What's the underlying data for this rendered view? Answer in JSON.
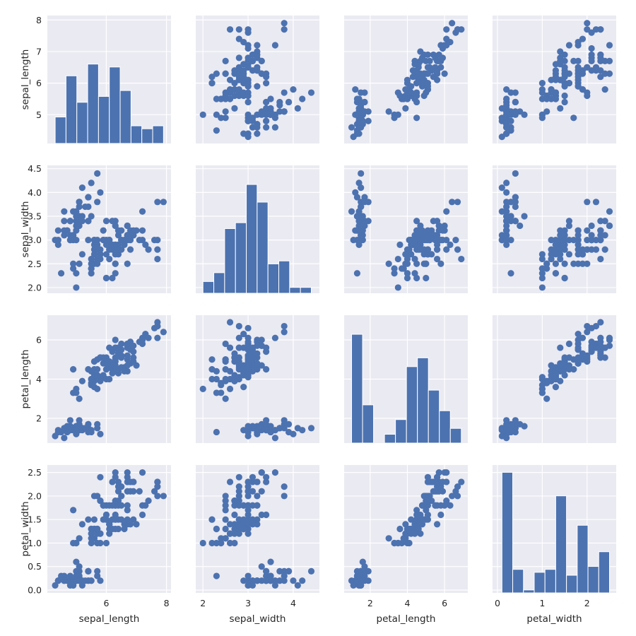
{
  "chart_data": {
    "type": "scatter",
    "subtype": "pairplot",
    "diagonal": "histogram",
    "hist_bins": 10,
    "hist_count_axis_max": 43.5,
    "colors": {
      "marker": "#4c72b0",
      "background": "#eaeaf2",
      "grid": "#ffffff",
      "text": "#262626"
    },
    "grid": true,
    "variables": [
      "sepal_length",
      "sepal_width",
      "petal_length",
      "petal_width"
    ],
    "axes": [
      {
        "name": "sepal_length",
        "label": "sepal_length",
        "xlim": [
          4.04,
          8.15
        ],
        "ylim": [
          4.09,
          8.14
        ],
        "xticks": [
          4,
          6,
          8
        ],
        "xtick_labels": [
          "",
          "6",
          "8"
        ],
        "yticks": [
          5,
          6,
          7,
          8
        ],
        "ytick_labels": [
          "5",
          "6",
          "7",
          "8"
        ]
      },
      {
        "name": "sepal_width",
        "label": "sepal_width",
        "xlim": [
          1.84,
          4.58
        ],
        "ylim": [
          1.88,
          4.57
        ],
        "xticks": [
          2,
          3,
          4
        ],
        "xtick_labels": [
          "2",
          "3",
          "4"
        ],
        "yticks": [
          2.0,
          2.5,
          3.0,
          3.5,
          4.0,
          4.5
        ],
        "ytick_labels": [
          "2.0",
          "2.5",
          "3.0",
          "3.5",
          "4.0",
          "4.5"
        ]
      },
      {
        "name": "petal_length",
        "label": "petal_length",
        "xlim": [
          0.6,
          7.25
        ],
        "ylim": [
          0.74,
          7.26
        ],
        "xticks": [
          2,
          4,
          6
        ],
        "xtick_labels": [
          "2",
          "4",
          "6"
        ],
        "yticks": [
          2,
          4,
          6
        ],
        "ytick_labels": [
          "2",
          "4",
          "6"
        ]
      },
      {
        "name": "petal_width",
        "label": "petal_width",
        "xlim": [
          -0.11,
          2.65
        ],
        "ylim": [
          -0.06,
          2.66
        ],
        "xticks": [
          0,
          1,
          2
        ],
        "xtick_labels": [
          "0",
          "1",
          "2"
        ],
        "yticks": [
          0.0,
          0.5,
          1.0,
          1.5,
          2.0,
          2.5
        ],
        "ytick_labels": [
          "0.0",
          "0.5",
          "1.0",
          "1.5",
          "2.0",
          "2.5"
        ]
      }
    ],
    "rows": [
      [
        5.1,
        3.5,
        1.4,
        0.2
      ],
      [
        4.9,
        3.0,
        1.4,
        0.2
      ],
      [
        4.7,
        3.2,
        1.3,
        0.2
      ],
      [
        4.6,
        3.1,
        1.5,
        0.2
      ],
      [
        5.0,
        3.6,
        1.4,
        0.2
      ],
      [
        5.4,
        3.9,
        1.7,
        0.4
      ],
      [
        4.6,
        3.4,
        1.4,
        0.3
      ],
      [
        5.0,
        3.4,
        1.5,
        0.2
      ],
      [
        4.4,
        2.9,
        1.4,
        0.2
      ],
      [
        4.9,
        3.1,
        1.5,
        0.1
      ],
      [
        5.4,
        3.7,
        1.5,
        0.2
      ],
      [
        4.8,
        3.4,
        1.6,
        0.2
      ],
      [
        4.8,
        3.0,
        1.4,
        0.1
      ],
      [
        4.3,
        3.0,
        1.1,
        0.1
      ],
      [
        5.8,
        4.0,
        1.2,
        0.2
      ],
      [
        5.7,
        4.4,
        1.5,
        0.4
      ],
      [
        5.4,
        3.9,
        1.3,
        0.4
      ],
      [
        5.1,
        3.5,
        1.4,
        0.3
      ],
      [
        5.7,
        3.8,
        1.7,
        0.3
      ],
      [
        5.1,
        3.8,
        1.5,
        0.3
      ],
      [
        5.4,
        3.4,
        1.7,
        0.2
      ],
      [
        5.1,
        3.7,
        1.5,
        0.4
      ],
      [
        4.6,
        3.6,
        1.0,
        0.2
      ],
      [
        5.1,
        3.3,
        1.7,
        0.5
      ],
      [
        4.8,
        3.4,
        1.9,
        0.2
      ],
      [
        5.0,
        3.0,
        1.6,
        0.2
      ],
      [
        5.0,
        3.4,
        1.6,
        0.4
      ],
      [
        5.2,
        3.5,
        1.5,
        0.2
      ],
      [
        5.2,
        3.4,
        1.4,
        0.2
      ],
      [
        4.7,
        3.2,
        1.6,
        0.2
      ],
      [
        4.8,
        3.1,
        1.6,
        0.2
      ],
      [
        5.4,
        3.4,
        1.5,
        0.4
      ],
      [
        5.2,
        4.1,
        1.5,
        0.1
      ],
      [
        5.5,
        4.2,
        1.4,
        0.2
      ],
      [
        4.9,
        3.1,
        1.5,
        0.2
      ],
      [
        5.0,
        3.2,
        1.2,
        0.2
      ],
      [
        5.5,
        3.5,
        1.3,
        0.2
      ],
      [
        4.9,
        3.6,
        1.4,
        0.1
      ],
      [
        4.4,
        3.0,
        1.3,
        0.2
      ],
      [
        5.1,
        3.4,
        1.5,
        0.2
      ],
      [
        5.0,
        3.5,
        1.3,
        0.3
      ],
      [
        4.5,
        2.3,
        1.3,
        0.3
      ],
      [
        4.4,
        3.2,
        1.3,
        0.2
      ],
      [
        5.0,
        3.5,
        1.6,
        0.6
      ],
      [
        5.1,
        3.8,
        1.9,
        0.4
      ],
      [
        4.8,
        3.0,
        1.4,
        0.3
      ],
      [
        5.1,
        3.8,
        1.6,
        0.2
      ],
      [
        4.6,
        3.2,
        1.4,
        0.2
      ],
      [
        5.3,
        3.7,
        1.5,
        0.2
      ],
      [
        5.0,
        3.3,
        1.4,
        0.2
      ],
      [
        7.0,
        3.2,
        4.7,
        1.4
      ],
      [
        6.4,
        3.2,
        4.5,
        1.5
      ],
      [
        6.9,
        3.1,
        4.9,
        1.5
      ],
      [
        5.5,
        2.3,
        4.0,
        1.3
      ],
      [
        6.5,
        2.8,
        4.6,
        1.5
      ],
      [
        5.7,
        2.8,
        4.5,
        1.3
      ],
      [
        6.3,
        3.3,
        4.7,
        1.6
      ],
      [
        4.9,
        2.4,
        3.3,
        1.0
      ],
      [
        6.6,
        2.9,
        4.6,
        1.3
      ],
      [
        5.2,
        2.7,
        3.9,
        1.4
      ],
      [
        5.0,
        2.0,
        3.5,
        1.0
      ],
      [
        5.9,
        3.0,
        4.2,
        1.5
      ],
      [
        6.0,
        2.2,
        4.0,
        1.0
      ],
      [
        6.1,
        2.9,
        4.7,
        1.4
      ],
      [
        5.6,
        2.9,
        3.6,
        1.3
      ],
      [
        6.7,
        3.1,
        4.4,
        1.4
      ],
      [
        5.6,
        3.0,
        4.5,
        1.5
      ],
      [
        5.8,
        2.7,
        4.1,
        1.0
      ],
      [
        6.2,
        2.2,
        4.5,
        1.5
      ],
      [
        5.6,
        2.5,
        3.9,
        1.1
      ],
      [
        5.9,
        3.2,
        4.8,
        1.8
      ],
      [
        6.1,
        2.8,
        4.0,
        1.3
      ],
      [
        6.3,
        2.5,
        4.9,
        1.5
      ],
      [
        6.1,
        2.8,
        4.7,
        1.2
      ],
      [
        6.4,
        2.9,
        4.3,
        1.3
      ],
      [
        6.6,
        3.0,
        4.4,
        1.4
      ],
      [
        6.8,
        2.8,
        4.8,
        1.4
      ],
      [
        6.7,
        3.0,
        5.0,
        1.7
      ],
      [
        6.0,
        2.9,
        4.5,
        1.5
      ],
      [
        5.7,
        2.6,
        3.5,
        1.0
      ],
      [
        5.5,
        2.4,
        3.8,
        1.1
      ],
      [
        5.5,
        2.4,
        3.7,
        1.0
      ],
      [
        5.8,
        2.7,
        3.9,
        1.2
      ],
      [
        6.0,
        2.7,
        5.1,
        1.6
      ],
      [
        5.4,
        3.0,
        4.5,
        1.5
      ],
      [
        6.0,
        3.4,
        4.5,
        1.6
      ],
      [
        6.7,
        3.1,
        4.7,
        1.5
      ],
      [
        6.3,
        2.3,
        4.4,
        1.3
      ],
      [
        5.6,
        3.0,
        4.1,
        1.3
      ],
      [
        5.5,
        2.5,
        4.0,
        1.3
      ],
      [
        5.5,
        2.6,
        4.4,
        1.2
      ],
      [
        6.1,
        3.0,
        4.6,
        1.4
      ],
      [
        5.8,
        2.6,
        4.0,
        1.2
      ],
      [
        5.0,
        2.3,
        3.3,
        1.0
      ],
      [
        5.6,
        2.7,
        4.2,
        1.3
      ],
      [
        5.7,
        3.0,
        4.2,
        1.2
      ],
      [
        5.7,
        2.9,
        4.2,
        1.3
      ],
      [
        6.2,
        2.9,
        4.3,
        1.3
      ],
      [
        5.1,
        2.5,
        3.0,
        1.1
      ],
      [
        5.7,
        2.8,
        4.1,
        1.3
      ],
      [
        6.3,
        3.3,
        6.0,
        2.5
      ],
      [
        5.8,
        2.7,
        5.1,
        1.9
      ],
      [
        7.1,
        3.0,
        5.9,
        2.1
      ],
      [
        6.3,
        2.9,
        5.6,
        1.8
      ],
      [
        6.5,
        3.0,
        5.8,
        2.2
      ],
      [
        7.6,
        3.0,
        6.6,
        2.1
      ],
      [
        4.9,
        2.5,
        4.5,
        1.7
      ],
      [
        7.3,
        2.9,
        6.3,
        1.8
      ],
      [
        6.7,
        2.5,
        5.8,
        1.8
      ],
      [
        7.2,
        3.6,
        6.1,
        2.5
      ],
      [
        6.5,
        3.2,
        5.1,
        2.0
      ],
      [
        6.4,
        2.7,
        5.3,
        1.9
      ],
      [
        6.8,
        3.0,
        5.5,
        2.1
      ],
      [
        5.7,
        2.5,
        5.0,
        2.0
      ],
      [
        5.8,
        2.8,
        5.1,
        2.4
      ],
      [
        6.4,
        3.2,
        5.3,
        2.3
      ],
      [
        6.5,
        3.0,
        5.5,
        1.8
      ],
      [
        7.7,
        3.8,
        6.7,
        2.2
      ],
      [
        7.7,
        2.6,
        6.9,
        2.3
      ],
      [
        6.0,
        2.2,
        5.0,
        1.5
      ],
      [
        6.9,
        3.2,
        5.7,
        2.3
      ],
      [
        5.6,
        2.8,
        4.9,
        2.0
      ],
      [
        7.7,
        2.8,
        6.7,
        2.0
      ],
      [
        6.3,
        2.7,
        4.9,
        1.8
      ],
      [
        6.7,
        3.3,
        5.7,
        2.1
      ],
      [
        7.2,
        3.2,
        6.0,
        1.8
      ],
      [
        6.2,
        2.8,
        4.8,
        1.8
      ],
      [
        6.1,
        3.0,
        4.9,
        1.8
      ],
      [
        6.4,
        2.8,
        5.6,
        2.1
      ],
      [
        7.2,
        3.0,
        5.8,
        1.6
      ],
      [
        7.4,
        2.8,
        6.1,
        1.9
      ],
      [
        7.9,
        3.8,
        6.4,
        2.0
      ],
      [
        6.4,
        2.8,
        5.6,
        2.2
      ],
      [
        6.3,
        2.8,
        5.1,
        1.5
      ],
      [
        6.1,
        2.6,
        5.6,
        1.4
      ],
      [
        7.7,
        3.0,
        6.1,
        2.3
      ],
      [
        6.3,
        3.4,
        5.6,
        2.4
      ],
      [
        6.4,
        3.1,
        5.5,
        1.8
      ],
      [
        6.0,
        3.0,
        4.8,
        1.8
      ],
      [
        6.9,
        3.1,
        5.4,
        2.1
      ],
      [
        6.7,
        3.1,
        5.6,
        2.4
      ],
      [
        6.9,
        3.1,
        5.1,
        2.3
      ],
      [
        5.8,
        2.7,
        5.1,
        1.9
      ],
      [
        6.8,
        3.2,
        5.9,
        2.3
      ],
      [
        6.7,
        3.3,
        5.7,
        2.5
      ],
      [
        6.7,
        3.0,
        5.2,
        2.3
      ],
      [
        6.3,
        2.5,
        5.0,
        1.9
      ],
      [
        6.5,
        3.0,
        5.2,
        2.0
      ],
      [
        6.2,
        3.4,
        5.4,
        2.3
      ],
      [
        5.9,
        3.0,
        5.1,
        1.8
      ]
    ]
  }
}
